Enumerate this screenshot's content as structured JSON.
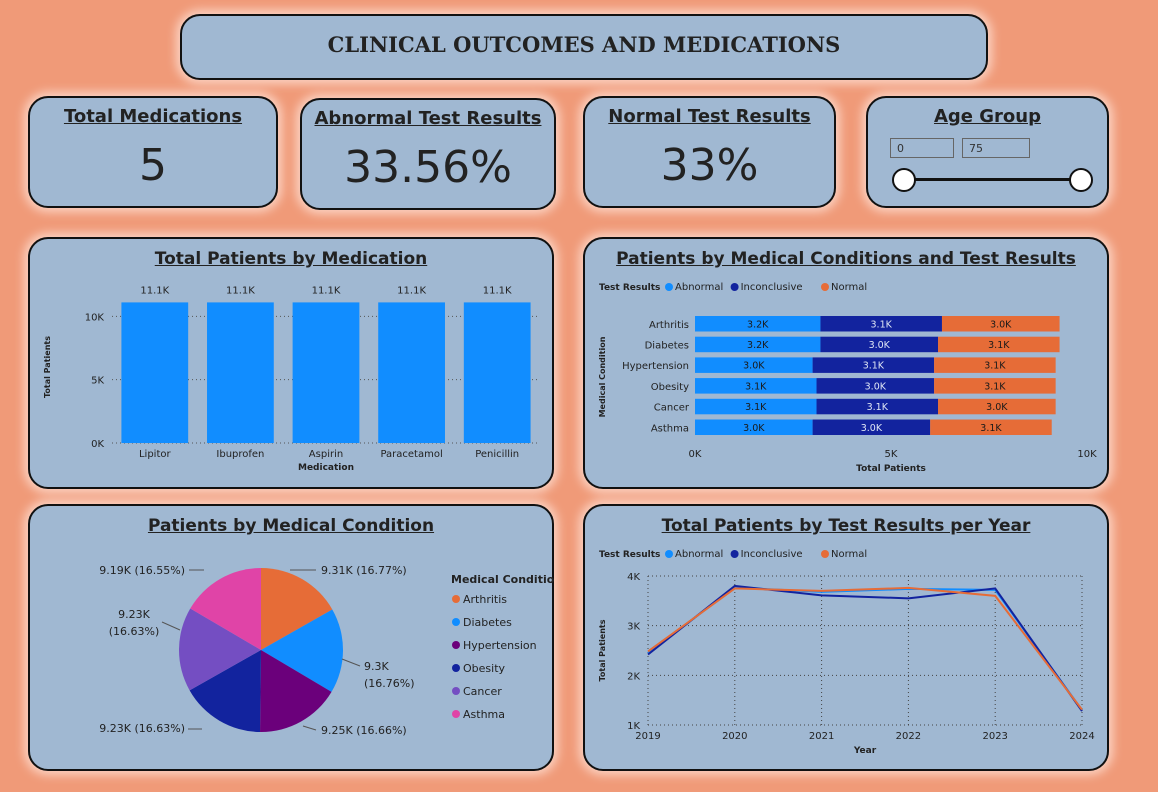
{
  "header": {
    "title": "CLINICAL OUTCOMES AND MEDICATIONS"
  },
  "kpis": {
    "total_medications": {
      "label": "Total Medications",
      "value": "5"
    },
    "abnormal": {
      "label": "Abnormal Test Results",
      "value": "33.56%"
    },
    "normal": {
      "label": "Normal Test Results",
      "value": "33%"
    }
  },
  "age_group": {
    "label": "Age Group",
    "min": "0",
    "max": "75"
  },
  "colors": {
    "bar": "#118dff",
    "abnormal": "#118dff",
    "inconclusive": "#12239e",
    "normal": "#e66c37",
    "pie": [
      "#e66c37",
      "#118dff",
      "#6b007b",
      "#12239e",
      "#744ec2",
      "#e044a7"
    ]
  },
  "chart_data": [
    {
      "type": "bar",
      "title": "Total Patients by Medication",
      "xlabel": "Medication",
      "ylabel": "Total Patients",
      "categories": [
        "Lipitor",
        "Ibuprofen",
        "Aspirin",
        "Paracetamol",
        "Penicillin"
      ],
      "values": [
        11100,
        11100,
        11100,
        11100,
        11100
      ],
      "data_labels": [
        "11.1K",
        "11.1K",
        "11.1K",
        "11.1K",
        "11.1K"
      ],
      "yticks": [
        0,
        5000,
        10000
      ],
      "ytick_labels": [
        "0K",
        "5K",
        "10K"
      ],
      "ylim": [
        0,
        12000
      ]
    },
    {
      "type": "bar",
      "orientation": "horizontal-stacked",
      "title": "Patients by Medical Conditions and Test Results",
      "legend_title": "Test Results",
      "xlabel": "Total Patients",
      "ylabel": "Medical Condition",
      "categories": [
        "Arthritis",
        "Diabetes",
        "Hypertension",
        "Obesity",
        "Cancer",
        "Asthma"
      ],
      "series": [
        {
          "name": "Abnormal",
          "values": [
            3200,
            3200,
            3000,
            3100,
            3100,
            3000
          ],
          "labels": [
            "3.2K",
            "3.2K",
            "3.0K",
            "3.1K",
            "3.1K",
            "3.0K"
          ]
        },
        {
          "name": "Inconclusive",
          "values": [
            3100,
            3000,
            3100,
            3000,
            3100,
            3000
          ],
          "labels": [
            "3.1K",
            "3.0K",
            "3.1K",
            "3.0K",
            "3.1K",
            "3.0K"
          ]
        },
        {
          "name": "Normal",
          "values": [
            3000,
            3100,
            3100,
            3100,
            3000,
            3100
          ],
          "labels": [
            "3.0K",
            "3.1K",
            "3.1K",
            "3.1K",
            "3.0K",
            "3.1K"
          ]
        }
      ],
      "xticks": [
        0,
        5000,
        10000
      ],
      "xtick_labels": [
        "0K",
        "5K",
        "10K"
      ],
      "xlim": [
        0,
        10000
      ]
    },
    {
      "type": "pie",
      "title": "Patients by Medical Condition",
      "legend_title": "Medical Condition",
      "categories": [
        "Arthritis",
        "Diabetes",
        "Hypertension",
        "Obesity",
        "Cancer",
        "Asthma"
      ],
      "values": [
        9310,
        9300,
        9250,
        9230,
        9230,
        9190
      ],
      "labels": [
        "9.31K (16.77%)",
        "9.3K (16.76%)",
        "9.25K (16.66%)",
        "9.23K (16.63%)",
        "9.23K (16.63%)",
        "9.19K (16.55%)"
      ]
    },
    {
      "type": "line",
      "title": "Total Patients by Test Results per Year",
      "legend_title": "Test Results",
      "xlabel": "Year",
      "ylabel": "Total Patients",
      "x": [
        "2019",
        "2020",
        "2021",
        "2022",
        "2023",
        "2024"
      ],
      "series": [
        {
          "name": "Abnormal",
          "values": [
            2450,
            3770,
            3680,
            3740,
            3720,
            1300
          ]
        },
        {
          "name": "Inconclusive",
          "values": [
            2420,
            3800,
            3610,
            3550,
            3750,
            1280
          ]
        },
        {
          "name": "Normal",
          "values": [
            2480,
            3750,
            3700,
            3760,
            3600,
            1310
          ]
        }
      ],
      "yticks": [
        1000,
        2000,
        3000,
        4000
      ],
      "ytick_labels": [
        "1K",
        "2K",
        "3K",
        "4K"
      ],
      "ylim": [
        1000,
        4000
      ]
    }
  ]
}
